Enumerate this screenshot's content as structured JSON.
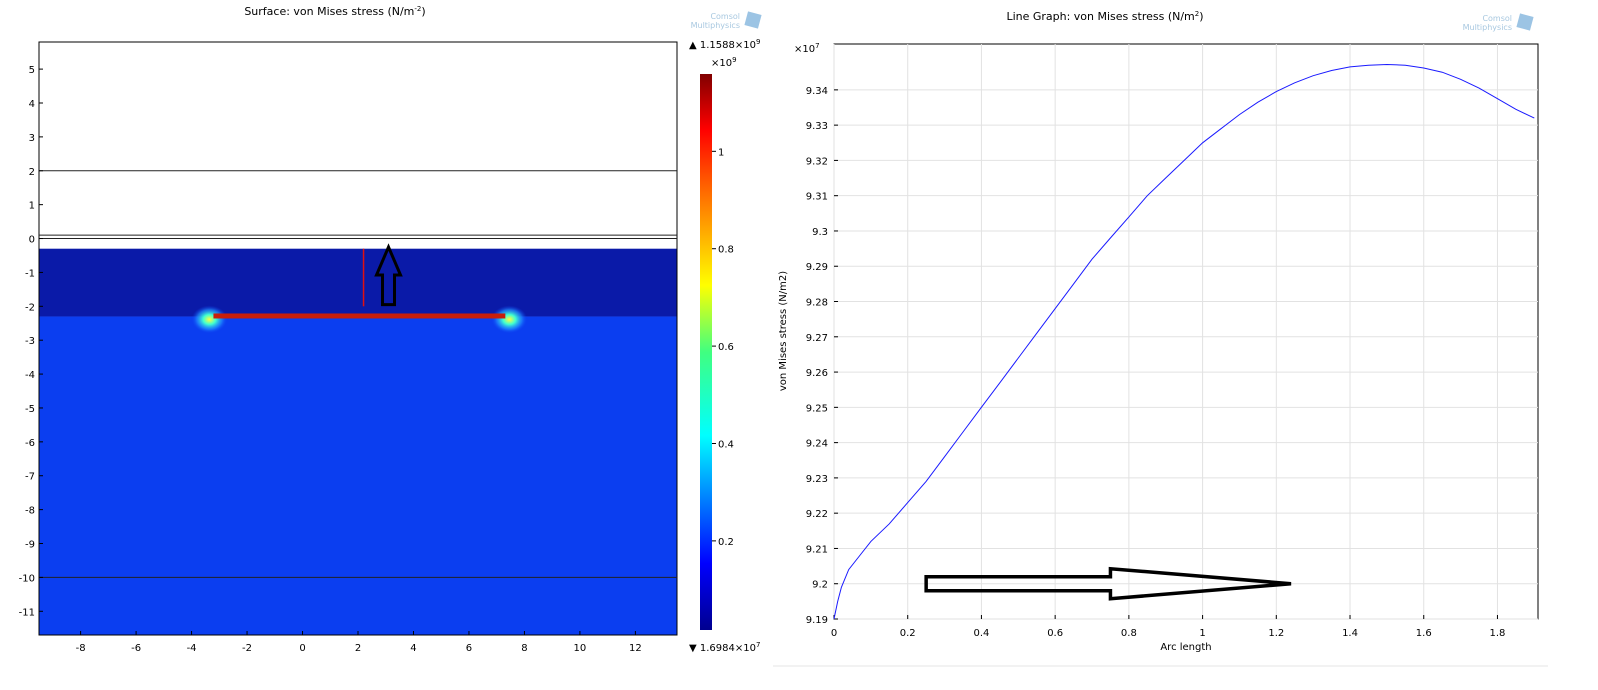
{
  "left_panel": {
    "title": "Surface: von Mises stress (N/m",
    "title_sup": "-2",
    "title_tail": ")",
    "logo_line1": "Comsol",
    "logo_line2": "Multiphysics",
    "colorbar": {
      "max_label": "▲ 1.1588×10",
      "max_exp": "9",
      "multiplier": "×10",
      "multiplier_exp": "9",
      "min_label": "▼ 1.6984×10",
      "min_exp": "7",
      "ticks": [
        {
          "value": 1.0,
          "label": "1"
        },
        {
          "value": 0.8,
          "label": "0.8"
        },
        {
          "value": 0.6,
          "label": "0.6"
        },
        {
          "value": 0.4,
          "label": "0.4"
        },
        {
          "value": 0.2,
          "label": "0.2"
        }
      ],
      "range": [
        0.016984,
        1.1588
      ],
      "colormap": "rainbow"
    },
    "axes": {
      "xlim": [
        -9.5,
        13.5
      ],
      "ylim": [
        -11.7,
        5.8
      ],
      "xticks": [
        {
          "value": -8,
          "label": "-8"
        },
        {
          "value": -6,
          "label": "-6"
        },
        {
          "value": -4,
          "label": "-4"
        },
        {
          "value": -2,
          "label": "-2"
        },
        {
          "value": 0,
          "label": "0"
        },
        {
          "value": 2,
          "label": "2"
        },
        {
          "value": 4,
          "label": "4"
        },
        {
          "value": 6,
          "label": "6"
        },
        {
          "value": 8,
          "label": "8"
        },
        {
          "value": 10,
          "label": "10"
        },
        {
          "value": 12,
          "label": "12"
        }
      ],
      "yticks": [
        {
          "value": 5,
          "label": "5"
        },
        {
          "value": 4,
          "label": "4"
        },
        {
          "value": 3,
          "label": "3"
        },
        {
          "value": 2,
          "label": "2"
        },
        {
          "value": 1,
          "label": "1"
        },
        {
          "value": 0,
          "label": "0"
        },
        {
          "value": -1,
          "label": "-1"
        },
        {
          "value": -2,
          "label": "-2"
        },
        {
          "value": -3,
          "label": "-3"
        },
        {
          "value": -4,
          "label": "-4"
        },
        {
          "value": -5,
          "label": "-5"
        },
        {
          "value": -6,
          "label": "-6"
        },
        {
          "value": -7,
          "label": "-7"
        },
        {
          "value": -8,
          "label": "-8"
        },
        {
          "value": -9,
          "label": "-9"
        },
        {
          "value": -10,
          "label": "-10"
        },
        {
          "value": -11,
          "label": "-11"
        }
      ]
    },
    "domains": {
      "boundary_lines_y": [
        2,
        0.1,
        0,
        -10
      ],
      "upper_layer": {
        "y_top": -0.3,
        "y_bottom": -2.3,
        "color": "#0a1aa8"
      },
      "lower_layer": {
        "y_top": -2.3,
        "y_bottom": -11.7,
        "color": "#0b3ef0"
      },
      "high_stress_strip": {
        "x_from": -3.5,
        "x_to": 7.6,
        "y": -2.3,
        "color": "#c81e0a"
      },
      "cut_line": {
        "x": 2.2,
        "y_from": -0.3,
        "y_to": -2.0,
        "color": "#e01010"
      },
      "arrow": {
        "x": 3.1,
        "y_base": -1.95,
        "y_tip": -0.25,
        "direction": "up"
      }
    }
  },
  "right_panel": {
    "title": "Line Graph: von Mises stress (N/m",
    "title_sup": "2",
    "title_tail": ")",
    "logo_line1": "Comsol",
    "logo_line2": "Multiphysics",
    "y_multiplier": "×10",
    "y_multiplier_exp": "7",
    "annotation_arrow": {
      "x_from": 0.25,
      "x_to": 1.24,
      "y": 9.2,
      "direction": "right"
    }
  },
  "chart_data": {
    "type": "line",
    "title": "Line Graph: von Mises stress (N/m2)",
    "xlabel": "Arc length",
    "ylabel": "von Mises stress (N/m2)",
    "xlim": [
      0,
      1.91
    ],
    "ylim": [
      9.19,
      9.353
    ],
    "grid": true,
    "line_color": "#1a1aff",
    "xticks": [
      {
        "value": 0,
        "label": "0"
      },
      {
        "value": 0.2,
        "label": "0.2"
      },
      {
        "value": 0.4,
        "label": "0.4"
      },
      {
        "value": 0.6,
        "label": "0.6"
      },
      {
        "value": 0.8,
        "label": "0.8"
      },
      {
        "value": 1.0,
        "label": "1"
      },
      {
        "value": 1.2,
        "label": "1.2"
      },
      {
        "value": 1.4,
        "label": "1.4"
      },
      {
        "value": 1.6,
        "label": "1.6"
      },
      {
        "value": 1.8,
        "label": "1.8"
      }
    ],
    "yticks": [
      {
        "value": 9.34,
        "label": "9.34"
      },
      {
        "value": 9.33,
        "label": "9.33"
      },
      {
        "value": 9.32,
        "label": "9.32"
      },
      {
        "value": 9.31,
        "label": "9.31"
      },
      {
        "value": 9.3,
        "label": "9.3"
      },
      {
        "value": 9.29,
        "label": "9.29"
      },
      {
        "value": 9.28,
        "label": "9.28"
      },
      {
        "value": 9.27,
        "label": "9.27"
      },
      {
        "value": 9.26,
        "label": "9.26"
      },
      {
        "value": 9.25,
        "label": "9.25"
      },
      {
        "value": 9.24,
        "label": "9.24"
      },
      {
        "value": 9.23,
        "label": "9.23"
      },
      {
        "value": 9.22,
        "label": "9.22"
      },
      {
        "value": 9.21,
        "label": "9.21"
      },
      {
        "value": 9.2,
        "label": "9.2"
      },
      {
        "value": 9.19,
        "label": "9.19"
      }
    ],
    "series": [
      {
        "x": [
          0.0,
          0.01,
          0.02,
          0.04,
          0.07,
          0.1,
          0.15,
          0.2,
          0.25,
          0.3,
          0.35,
          0.4,
          0.45,
          0.5,
          0.55,
          0.6,
          0.65,
          0.7,
          0.75,
          0.8,
          0.85,
          0.9,
          0.95,
          1.0,
          1.05,
          1.1,
          1.15,
          1.2,
          1.25,
          1.3,
          1.35,
          1.4,
          1.45,
          1.5,
          1.55,
          1.6,
          1.65,
          1.7,
          1.75,
          1.8,
          1.85,
          1.9
        ],
        "values": [
          9.19,
          9.195,
          9.199,
          9.204,
          9.208,
          9.212,
          9.217,
          9.223,
          9.229,
          9.236,
          9.243,
          9.25,
          9.257,
          9.264,
          9.271,
          9.278,
          9.285,
          9.292,
          9.298,
          9.304,
          9.31,
          9.315,
          9.32,
          9.325,
          9.329,
          9.333,
          9.3365,
          9.3395,
          9.342,
          9.344,
          9.3455,
          9.3465,
          9.347,
          9.3472,
          9.347,
          9.3462,
          9.345,
          9.343,
          9.3405,
          9.3375,
          9.3345,
          9.332
        ]
      }
    ]
  }
}
